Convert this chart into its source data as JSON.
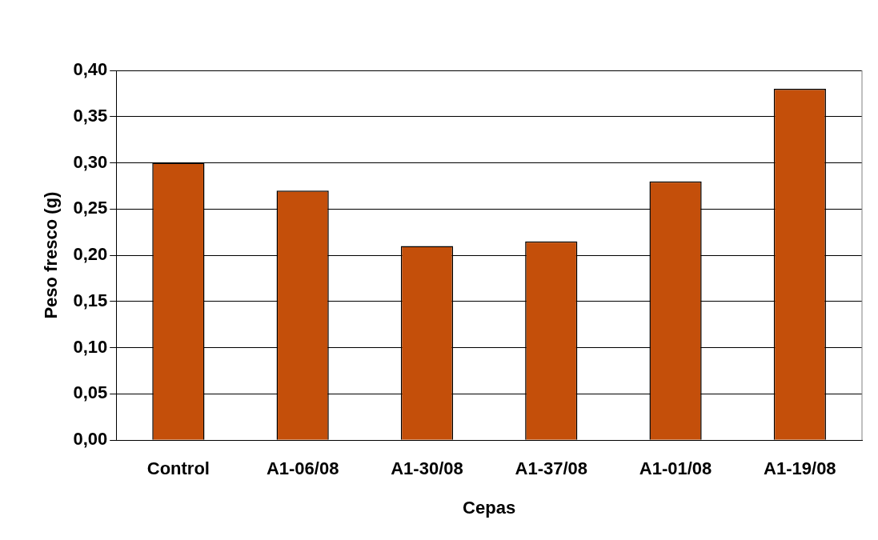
{
  "chart_data": {
    "type": "bar",
    "xlabel": "Cepas",
    "ylabel": "Peso fresco (g)",
    "categories": [
      "Control",
      "A1-06/08",
      "A1-30/08",
      "A1-37/08",
      "A1-01/08",
      "A1-19/08"
    ],
    "values": [
      0.3,
      0.27,
      0.21,
      0.215,
      0.28,
      0.38
    ],
    "color": "#c44f0a",
    "ylim": [
      0,
      0.4
    ],
    "yticks": [
      {
        "value": 0,
        "label": "0,00"
      },
      {
        "value": 0.05,
        "label": "0,05"
      },
      {
        "value": 0.1,
        "label": "0,10"
      },
      {
        "value": 0.15,
        "label": "0,15"
      },
      {
        "value": 0.2,
        "label": "0,20"
      },
      {
        "value": 0.25,
        "label": "0,25"
      },
      {
        "value": 0.3,
        "label": "0,30"
      },
      {
        "value": 0.35,
        "label": "0,35"
      },
      {
        "value": 0.4,
        "label": "0,40"
      }
    ],
    "grid": "y",
    "legend": false
  }
}
